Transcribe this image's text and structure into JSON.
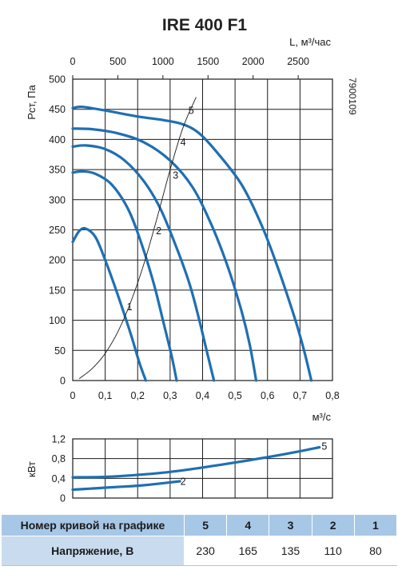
{
  "title": "IRE 400 F1",
  "product_code": "7900109",
  "chart_data": [
    {
      "type": "line",
      "title": "IRE 400 F1",
      "ylabel": "Pст, Па",
      "xlabel": "м³/с",
      "x2label": "L, м³/час",
      "xlim": [
        0,
        0.8
      ],
      "ylim": [
        0,
        500
      ],
      "x2lim": [
        0,
        2880
      ],
      "xticks": [
        "0",
        "0,1",
        "0,2",
        "0,3",
        "0,4",
        "0,5",
        "0,6",
        "0,7",
        "0,8"
      ],
      "x2ticks": [
        "0",
        "500",
        "1000",
        "1500",
        "2000",
        "2500"
      ],
      "yticks": [
        "0",
        "50",
        "100",
        "150",
        "200",
        "250",
        "300",
        "350",
        "400",
        "450",
        "500"
      ],
      "grid": true,
      "series": [
        {
          "name": "1",
          "x": [
            0,
            0.02,
            0.04,
            0.07,
            0.1,
            0.14,
            0.18,
            0.205,
            0.225
          ],
          "y": [
            230,
            248,
            252,
            238,
            200,
            140,
            75,
            30,
            0
          ]
        },
        {
          "name": "2",
          "x": [
            0,
            0.03,
            0.07,
            0.12,
            0.17,
            0.21,
            0.25,
            0.28,
            0.305,
            0.32
          ],
          "y": [
            345,
            347,
            343,
            325,
            285,
            230,
            160,
            95,
            40,
            0
          ]
        },
        {
          "name": "3",
          "x": [
            0,
            0.04,
            0.1,
            0.16,
            0.22,
            0.27,
            0.32,
            0.36,
            0.39,
            0.41,
            0.435
          ],
          "y": [
            388,
            390,
            384,
            365,
            330,
            285,
            220,
            160,
            100,
            55,
            0
          ]
        },
        {
          "name": "4",
          "x": [
            0,
            0.06,
            0.14,
            0.22,
            0.3,
            0.37,
            0.43,
            0.48,
            0.52,
            0.545,
            0.565
          ],
          "y": [
            418,
            417,
            410,
            395,
            365,
            320,
            255,
            185,
            115,
            60,
            0
          ]
        },
        {
          "name": "5",
          "x": [
            0,
            0.03,
            0.1,
            0.2,
            0.28,
            0.34,
            0.39,
            0.45,
            0.52,
            0.58,
            0.63,
            0.68,
            0.71,
            0.735
          ],
          "y": [
            452,
            454,
            448,
            438,
            432,
            425,
            410,
            375,
            325,
            260,
            190,
            110,
            55,
            0
          ]
        },
        {
          "name": "system",
          "x": [
            0.02,
            0.06,
            0.1,
            0.14,
            0.18,
            0.22,
            0.26,
            0.3,
            0.34,
            0.38
          ],
          "y": [
            3,
            20,
            45,
            82,
            132,
            195,
            270,
            350,
            420,
            470
          ]
        }
      ],
      "curve_labels": [
        {
          "text": "1",
          "x": 0.175,
          "y": 117
        },
        {
          "text": "2",
          "x": 0.265,
          "y": 243
        },
        {
          "text": "3",
          "x": 0.317,
          "y": 335
        },
        {
          "text": "4",
          "x": 0.34,
          "y": 390
        },
        {
          "text": "5",
          "x": 0.365,
          "y": 442
        }
      ]
    },
    {
      "type": "line",
      "ylabel": "кВт",
      "xlim": [
        0,
        0.8
      ],
      "ylim": [
        0,
        1.2
      ],
      "yticks": [
        "0",
        "0,4",
        "0,8",
        "1,2"
      ],
      "grid": true,
      "series": [
        {
          "name": "5",
          "x": [
            0,
            0.1,
            0.2,
            0.3,
            0.4,
            0.5,
            0.6,
            0.7,
            0.76
          ],
          "y": [
            0.42,
            0.43,
            0.47,
            0.53,
            0.62,
            0.72,
            0.83,
            0.95,
            1.03
          ]
        },
        {
          "name": "2",
          "x": [
            0,
            0.05,
            0.1,
            0.15,
            0.2,
            0.25,
            0.33
          ],
          "y": [
            0.17,
            0.19,
            0.21,
            0.23,
            0.25,
            0.28,
            0.34
          ]
        }
      ],
      "curve_labels": [
        {
          "text": "5",
          "x": 0.775,
          "y": 1.05
        },
        {
          "text": "2",
          "x": 0.34,
          "y": 0.33
        }
      ]
    }
  ],
  "table": {
    "row1_header": "Номер кривой на графике",
    "row2_header": "Напряжение, В",
    "curves": [
      "5",
      "4",
      "3",
      "2",
      "1"
    ],
    "voltages": [
      "230",
      "165",
      "135",
      "110",
      "80"
    ]
  },
  "colors": {
    "curve": "#1f6fb2",
    "table_header": "#a7c7e6",
    "table_header_light": "#c9dcef"
  }
}
